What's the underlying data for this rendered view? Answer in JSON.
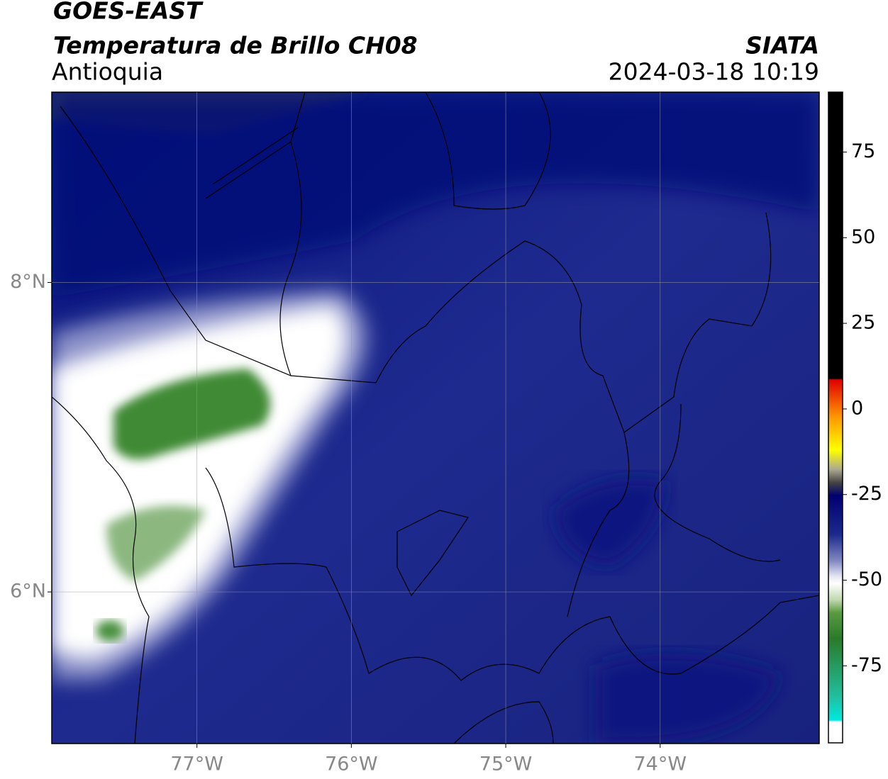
{
  "header": {
    "title": "GOES-EAST",
    "subtitle": "Temperatura de Brillo CH08",
    "region": "Antioquia",
    "source": "SIATA",
    "timestamp": "2024-03-18 10:19"
  },
  "map": {
    "xlim": [
      -77.94,
      -72.97
    ],
    "ylim": [
      5.02,
      9.23
    ],
    "xticks": [
      {
        "value": -77,
        "label": "77°W"
      },
      {
        "value": -76,
        "label": "76°W"
      },
      {
        "value": -75,
        "label": "75°W"
      },
      {
        "value": -74,
        "label": "74°W"
      }
    ],
    "yticks": [
      {
        "value": 8,
        "label": "8°N"
      },
      {
        "value": 6,
        "label": "6°N"
      }
    ]
  },
  "colorbar": {
    "lim": [
      -97.5,
      92.5
    ],
    "ticks": [
      75,
      50,
      25,
      0,
      -25,
      -50,
      -75
    ]
  }
}
